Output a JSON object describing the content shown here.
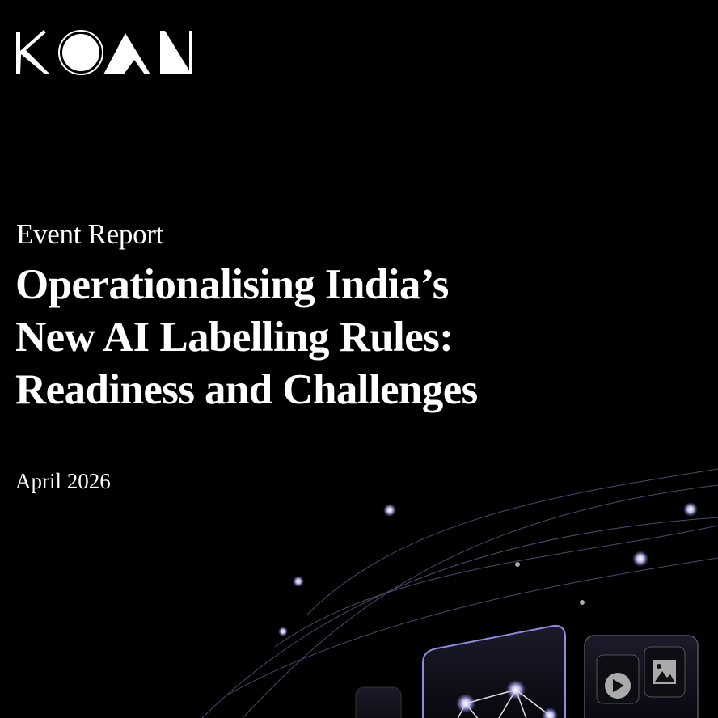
{
  "brand": {
    "logo_text": "KOAN"
  },
  "cover": {
    "kicker": "Event Report",
    "title_lines": [
      "Operationalising India’s",
      "New AI Labelling Rules:",
      "Readiness and Challenges"
    ],
    "date": "April 2026"
  },
  "colors": {
    "background": "#000000",
    "text": "#ffffff",
    "glow": "#c9c6ff"
  },
  "illustration": {
    "icons": [
      "network-graph-icon",
      "play-icon",
      "image-icon"
    ]
  }
}
